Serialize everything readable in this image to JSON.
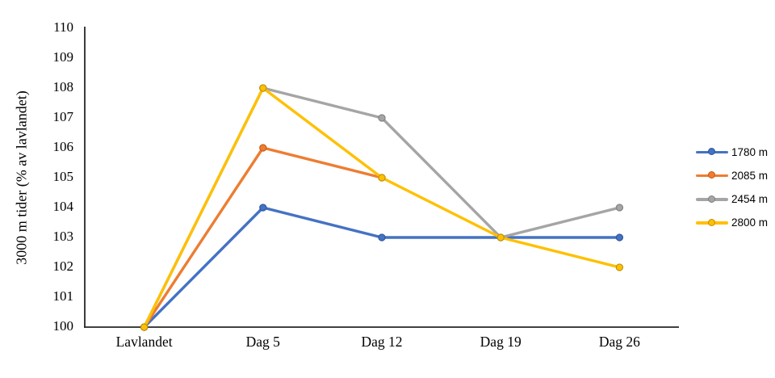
{
  "chart_data": {
    "type": "line",
    "title": "",
    "xlabel": "",
    "ylabel": "3000 m tider (% av lavlandet)",
    "categories": [
      "Lavlandet",
      "Dag 5",
      "Dag 12",
      "Dag 19",
      "Dag 26"
    ],
    "yticks": [
      100,
      101,
      102,
      103,
      104,
      105,
      106,
      107,
      108,
      109,
      110
    ],
    "ylim": [
      100,
      110
    ],
    "grid": false,
    "legend_position": "right",
    "axis_color": "#262626",
    "text_color": "#000000",
    "background_color": "#ffffff",
    "series": [
      {
        "name": "1780 m",
        "color": "#4472C4",
        "marker_border": "#2F5597",
        "values": [
          100,
          104,
          103,
          103,
          103
        ]
      },
      {
        "name": "2085 m",
        "color": "#ED7D31",
        "marker_border": "#C55A11",
        "values": [
          100,
          106,
          105,
          null,
          null
        ]
      },
      {
        "name": "2454 m",
        "color": "#A5A5A5",
        "marker_border": "#7F7F7F",
        "values": [
          100,
          108,
          107,
          103,
          104
        ]
      },
      {
        "name": "2800 m",
        "color": "#FFC000",
        "marker_border": "#BF8F00",
        "values": [
          100,
          108,
          105,
          103,
          102
        ]
      }
    ]
  }
}
